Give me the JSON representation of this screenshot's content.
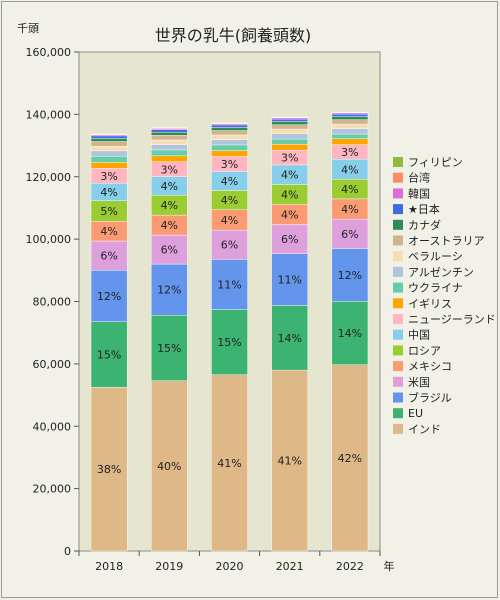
{
  "chart_data": {
    "type": "bar",
    "stacked": true,
    "title": "世界の乳牛(飼養頭数)",
    "ylabel": "千頭",
    "xlabel": "年",
    "ylim": [
      0,
      160000
    ],
    "yticks": [
      "0",
      "20,000",
      "40,000",
      "60,000",
      "80,000",
      "100,000",
      "120,000",
      "140,000",
      "160,000"
    ],
    "grid": false,
    "legend_position": "right",
    "categories": [
      "2018",
      "2019",
      "2020",
      "2021",
      "2022"
    ],
    "series": [
      {
        "name": "インド",
        "color": "#deb887",
        "values": [
          52500,
          54600,
          56500,
          58000,
          59700
        ],
        "labels": [
          "38%",
          "40%",
          "41%",
          "41%",
          "42%"
        ]
      },
      {
        "name": "EU",
        "color": "#3cb371",
        "values": [
          21000,
          21000,
          20900,
          20700,
          20400
        ],
        "labels": [
          "15%",
          "15%",
          "15%",
          "14%",
          "14%"
        ]
      },
      {
        "name": "ブラジル",
        "color": "#6495ed",
        "values": [
          16500,
          16400,
          16100,
          16600,
          16900
        ],
        "labels": [
          "12%",
          "12%",
          "11%",
          "11%",
          "12%"
        ]
      },
      {
        "name": "米国",
        "color": "#dda0dd",
        "values": [
          9400,
          9300,
          9400,
          9400,
          9400
        ],
        "labels": [
          "6%",
          "6%",
          "6%",
          "6%",
          "6%"
        ]
      },
      {
        "name": "メキシコ",
        "color": "#fa9b74",
        "values": [
          6300,
          6400,
          6500,
          6500,
          6500
        ],
        "labels": [
          "4%",
          "4%",
          "4%",
          "4%",
          "4%"
        ]
      },
      {
        "name": "ロシア",
        "color": "#9acd32",
        "values": [
          6600,
          6400,
          6200,
          6300,
          6300
        ],
        "labels": [
          "5%",
          "4%",
          "4%",
          "4%",
          "4%"
        ]
      },
      {
        "name": "中国",
        "color": "#87ceeb",
        "values": [
          5600,
          5900,
          6100,
          6300,
          6400
        ],
        "labels": [
          "4%",
          "4%",
          "4%",
          "4%",
          "4%"
        ]
      },
      {
        "name": "ニュージーランド",
        "color": "#ffb6c1",
        "values": [
          4800,
          4800,
          4800,
          4700,
          4700
        ],
        "labels": [
          "3%",
          "3%",
          "3%",
          "3%",
          "3%"
        ]
      },
      {
        "name": "イギリス",
        "color": "#ffa500",
        "values": [
          1900,
          1900,
          1900,
          1900,
          1900
        ],
        "labels": [
          "",
          "",
          "",
          "",
          ""
        ]
      },
      {
        "name": "ウクライナ",
        "color": "#66cdaa",
        "values": [
          2000,
          1900,
          1800,
          1700,
          1500
        ],
        "labels": [
          "",
          "",
          "",
          "",
          ""
        ]
      },
      {
        "name": "アルゼンチン",
        "color": "#b0c4de",
        "values": [
          1700,
          1700,
          1700,
          1700,
          1700
        ],
        "labels": [
          "",
          "",
          "",
          "",
          ""
        ]
      },
      {
        "name": "ベラルーシ",
        "color": "#f5deb3",
        "values": [
          1500,
          1500,
          1500,
          1500,
          1500
        ],
        "labels": [
          "",
          "",
          "",
          "",
          ""
        ]
      },
      {
        "name": "オーストラリア",
        "color": "#d2b48c",
        "values": [
          1500,
          1500,
          1400,
          1400,
          1400
        ],
        "labels": [
          "",
          "",
          "",
          "",
          ""
        ]
      },
      {
        "name": "カナダ",
        "color": "#2e8b57",
        "values": [
          1000,
          1000,
          1000,
          1000,
          1000
        ],
        "labels": [
          "",
          "",
          "",
          "",
          ""
        ]
      },
      {
        "name": "★日本",
        "color": "#4169e1",
        "values": [
          800,
          800,
          800,
          800,
          800
        ],
        "labels": [
          "",
          "",
          "",
          "",
          ""
        ]
      },
      {
        "name": "韓国",
        "color": "#da70d6",
        "values": [
          400,
          400,
          400,
          400,
          400
        ],
        "labels": [
          "",
          "",
          "",
          "",
          ""
        ]
      },
      {
        "name": "台湾",
        "color": "#ff8c69",
        "values": [
          100,
          100,
          100,
          100,
          100
        ],
        "labels": [
          "",
          "",
          "",
          "",
          ""
        ]
      },
      {
        "name": "フィリピン",
        "color": "#8fbc3f",
        "values": [
          100,
          100,
          100,
          100,
          100
        ],
        "labels": [
          "",
          "",
          "",
          "",
          ""
        ]
      }
    ]
  }
}
